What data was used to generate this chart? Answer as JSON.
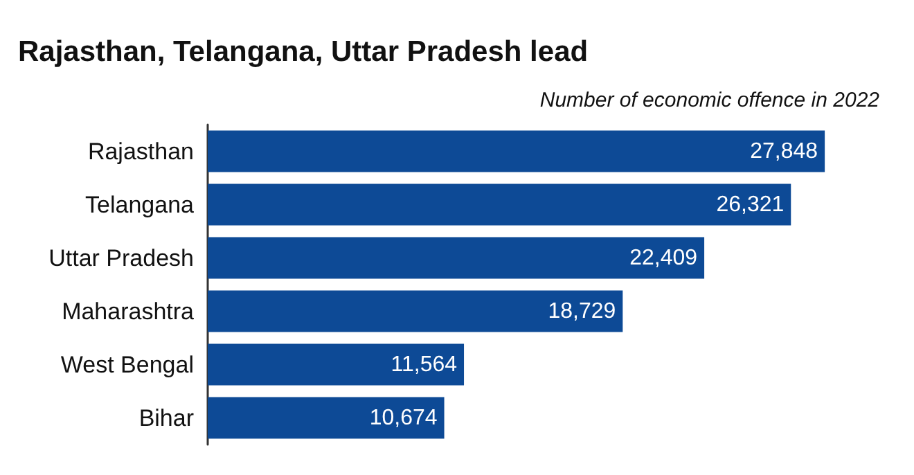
{
  "chart_data": {
    "type": "bar",
    "orientation": "horizontal",
    "title": "Rajasthan, Telangana, Uttar Pradesh lead",
    "subtitle": "Number of economic offence in 2022",
    "categories": [
      "Rajasthan",
      "Telangana",
      "Uttar Pradesh",
      "Maharashtra",
      "West Bengal",
      "Bihar"
    ],
    "values": [
      27848,
      26321,
      22409,
      18729,
      11564,
      10674
    ],
    "value_labels": [
      "27,848",
      "26,321",
      "22,409",
      "18,729",
      "11,564",
      "10,674"
    ],
    "color": "#0d4a96"
  }
}
